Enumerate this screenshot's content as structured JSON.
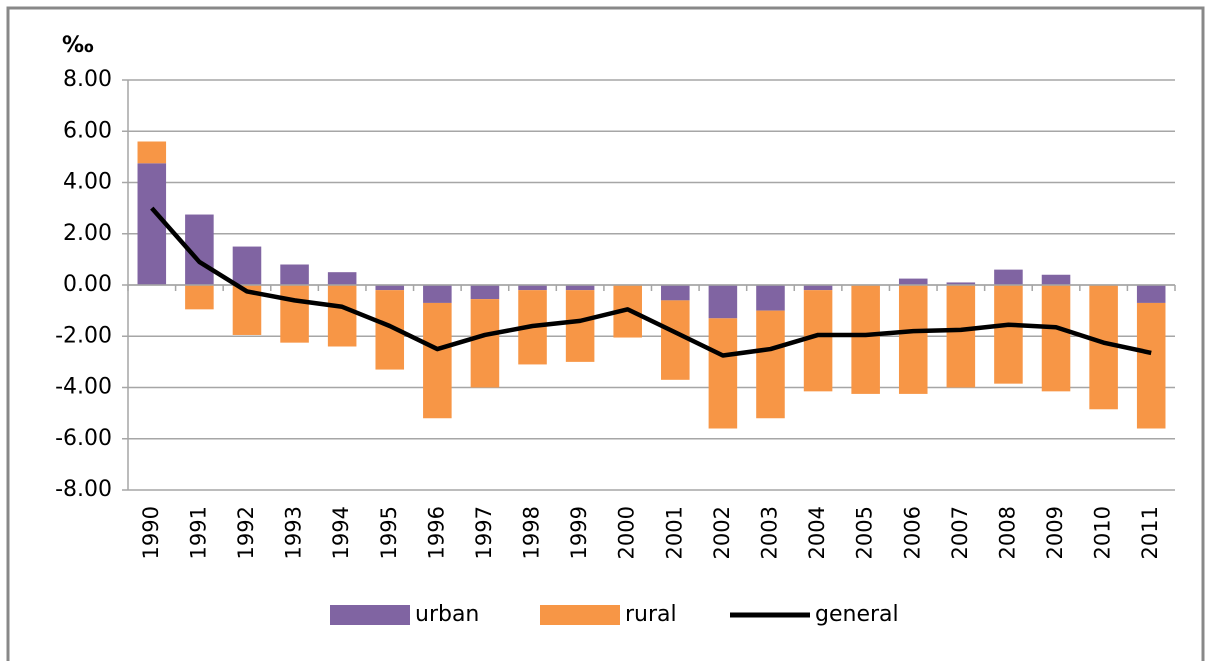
{
  "chart_data": {
    "type": "bar",
    "stacked": true,
    "y_label": "‰",
    "categories": [
      "1990",
      "1991",
      "1992",
      "1993",
      "1994",
      "1995",
      "1996",
      "1997",
      "1998",
      "1999",
      "2000",
      "2001",
      "2002",
      "2003",
      "2004",
      "2005",
      "2006",
      "2007",
      "2008",
      "2009",
      "2010",
      "2011"
    ],
    "series": [
      {
        "name": "urban",
        "color": "#8064a2",
        "kind": "bar",
        "values": [
          4.75,
          2.75,
          1.5,
          0.8,
          0.5,
          -0.2,
          -0.7,
          -0.55,
          -0.2,
          -0.2,
          0,
          -0.6,
          -1.3,
          -1.0,
          -0.2,
          0,
          0.25,
          0.1,
          0.6,
          0.4,
          0,
          -0.7
        ]
      },
      {
        "name": "rural",
        "color": "#f79646",
        "kind": "bar",
        "values": [
          0.85,
          -0.95,
          -1.95,
          -2.25,
          -2.4,
          -3.1,
          -4.5,
          -3.45,
          -2.9,
          -2.8,
          -2.05,
          -3.1,
          -4.3,
          -4.2,
          -3.95,
          -4.25,
          -4.25,
          -4.0,
          -3.85,
          -4.15,
          -4.85,
          -4.9
        ]
      },
      {
        "name": "general",
        "color": "#000000",
        "kind": "line",
        "values": [
          3.0,
          0.9,
          -0.25,
          -0.6,
          -0.85,
          -1.6,
          -2.5,
          -1.95,
          -1.6,
          -1.4,
          -0.95,
          -1.85,
          -2.75,
          -2.5,
          -1.95,
          -1.95,
          -1.8,
          -1.75,
          -1.55,
          -1.65,
          -2.25,
          -2.65
        ]
      }
    ],
    "ylim": [
      -8,
      8
    ],
    "yticks": [
      {
        "value": -8,
        "label": "-8.00"
      },
      {
        "value": -6,
        "label": "-6.00"
      },
      {
        "value": -4,
        "label": "-4.00"
      },
      {
        "value": -2,
        "label": "-2.00"
      },
      {
        "value": 0,
        "label": "0.00"
      },
      {
        "value": 2,
        "label": "2.00"
      },
      {
        "value": 4,
        "label": "4.00"
      },
      {
        "value": 6,
        "label": "6.00"
      },
      {
        "value": 8,
        "label": "8.00"
      }
    ],
    "grid": true,
    "legend": "bottom"
  }
}
